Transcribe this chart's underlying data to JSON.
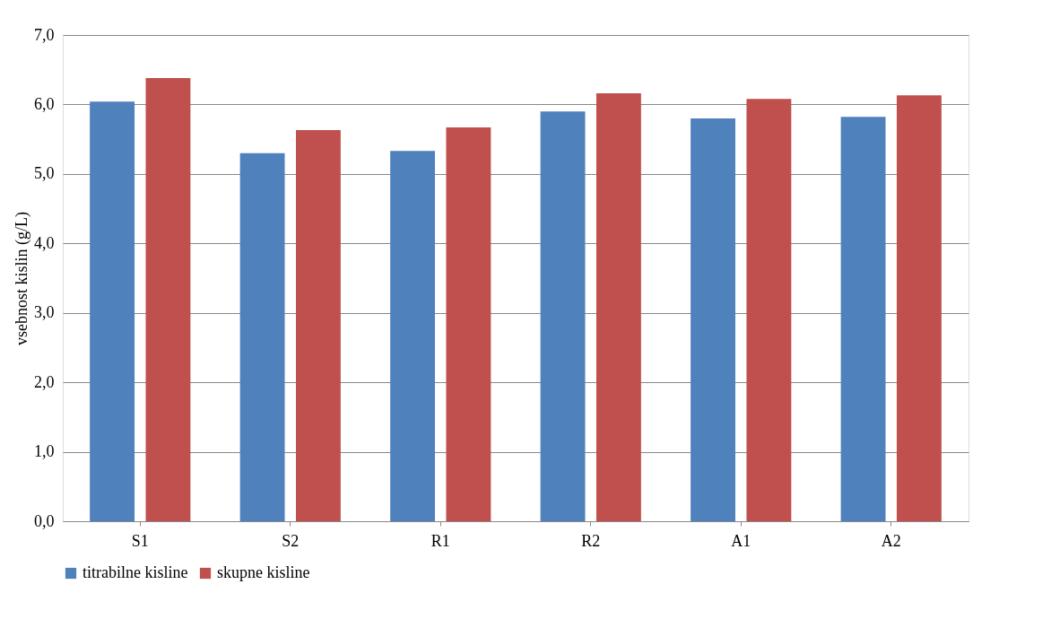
{
  "chart_data": {
    "type": "bar",
    "ylabel": "vsebnost kislin (g/L)",
    "categories": [
      "S1",
      "S2",
      "R1",
      "R2",
      "A1",
      "A2"
    ],
    "series": [
      {
        "name": "titrabilne kisline",
        "color": "#4f81bd",
        "values": [
          6.04,
          5.3,
          5.33,
          5.9,
          5.8,
          5.82
        ]
      },
      {
        "name": "skupne kisline",
        "color": "#c0504d",
        "values": [
          6.38,
          5.63,
          5.67,
          6.16,
          6.08,
          6.13
        ]
      }
    ],
    "ylim": [
      0,
      7
    ],
    "yticks": [
      {
        "value": 0,
        "label": "0,0"
      },
      {
        "value": 1,
        "label": "1,0"
      },
      {
        "value": 2,
        "label": "2,0"
      },
      {
        "value": 3,
        "label": "3,0"
      },
      {
        "value": 4,
        "label": "4,0"
      },
      {
        "value": 5,
        "label": "5,0"
      },
      {
        "value": 6,
        "label": "6,0"
      },
      {
        "value": 7,
        "label": "7,0"
      }
    ],
    "grid": "y",
    "legend": "bottom"
  }
}
